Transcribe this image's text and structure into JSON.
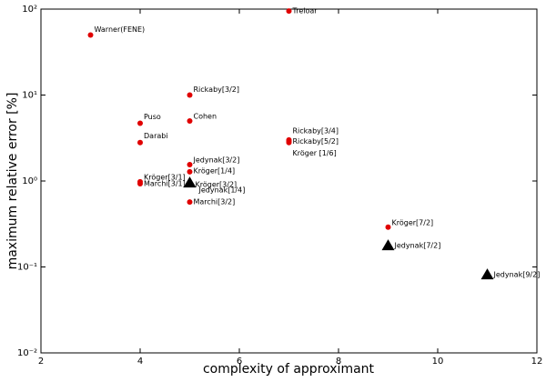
{
  "chart_data": {
    "type": "scatter",
    "xlabel": "complexity of approximant",
    "ylabel": "maximum relative error [%]",
    "xlim": [
      2,
      12
    ],
    "xticks": [
      2,
      4,
      6,
      8,
      10,
      12
    ],
    "ylim": [
      0.01,
      100
    ],
    "yscale": "log",
    "yticks": [
      {
        "value": 0.01,
        "label": "10⁻²"
      },
      {
        "value": 0.1,
        "label": "10⁻¹"
      },
      {
        "value": 1,
        "label": "10⁰"
      },
      {
        "value": 10,
        "label": "10¹"
      },
      {
        "value": 100,
        "label": "10²"
      }
    ],
    "series": [
      {
        "color": "#e00000",
        "marker": "circle",
        "x": [
          3,
          7,
          5,
          5,
          4,
          4,
          7,
          7,
          7,
          5,
          5,
          4,
          4,
          5,
          5,
          9
        ],
        "values": [
          50,
          95,
          10,
          5,
          4.7,
          2.8,
          3.0,
          2.9,
          2.8,
          1.55,
          1.28,
          0.98,
          0.93,
          0.93,
          0.57,
          0.29
        ],
        "labels": [
          "Warner(FENE)",
          "Treloar",
          "Rickaby[3/2]",
          "Cohen",
          "Puso",
          "Darabi",
          "Rickaby[3/4]",
          "Rickaby[5/2]",
          "Kröger  [1/6]",
          "Jedynak[3/2]",
          "Kröger[1/4]",
          "Kröger[3/1]",
          "Marchi[3/1]",
          "Kröger[3/2]",
          "Marchi[3/2]",
          "Kröger[7/2]"
        ]
      },
      {
        "color": "#000000",
        "marker": "triangle",
        "x": [
          5,
          9,
          11
        ],
        "values": [
          0.95,
          0.177,
          0.081
        ],
        "labels": [
          "Jedynak[1/4]",
          "Jedynak[7/2]",
          "Jedynak[9/2]"
        ]
      }
    ]
  }
}
